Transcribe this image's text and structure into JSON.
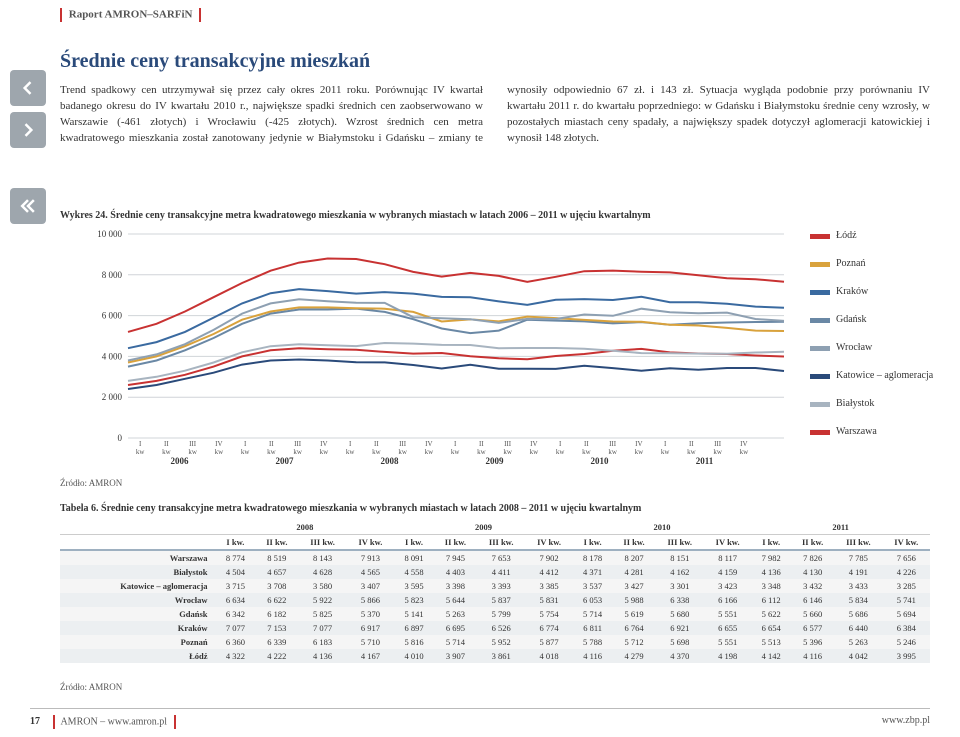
{
  "header": {
    "brand": "Raport AMRON–SARFiN"
  },
  "title": "Średnie ceny transakcyjne mieszkań",
  "paragraph": "Trend spadkowy cen utrzymywał się przez cały okres 2011 roku. Porównując IV kwartał badanego okresu do IV kwartału 2010 r., największe spadki średnich cen zaobserwowano w Warszawie (-461 złotych) i Wrocławiu (-425 złotych). Wzrost średnich cen metra kwadratowego mieszkania został zanotowany jedynie w Białymstoku i Gdańsku – zmiany te wynosiły odpowiednio 67 zł. i 143 zł. Sytuacja wygląda podobnie przy porównaniu IV kwartału 2011 r. do kwartału poprzedniego: w Gdańsku i Białymstoku średnie ceny wzrosły, w pozostałych miastach ceny spadały, a największy spadek dotyczył aglomeracji katowickiej i wynosił 148 złotych.",
  "chart": {
    "caption": "Wykres 24. Średnie ceny transakcyjne metra kwadratowego mieszkania w wybranych miastach w latach 2006 – 2011 w ujęciu kwartalnym",
    "type": "line",
    "ylim": [
      0,
      10000
    ],
    "yticks": [
      0,
      2000,
      4000,
      6000,
      8000,
      10000
    ],
    "ytick_labels": [
      "0",
      "2 000",
      "4 000",
      "6 000",
      "8 000",
      "10 000"
    ],
    "background_color": "#ffffff",
    "grid_color": "#d0d4d8",
    "line_width": 2,
    "x_quarters": [
      "I kw",
      "II kw",
      "III kw",
      "IV kw",
      "I kw",
      "II kw",
      "III kw",
      "IV kw",
      "I kw",
      "II kw",
      "III kw",
      "IV kw",
      "I kw",
      "II kw",
      "III kw",
      "IV kw",
      "I kw",
      "II kw",
      "III kw",
      "IV kw",
      "I kw",
      "II kw",
      "III kw",
      "IV kw"
    ],
    "x_years": [
      "2006",
      "2007",
      "2008",
      "2009",
      "2010",
      "2011"
    ],
    "legend_order": [
      "Łódź",
      "Poznań",
      "Kraków",
      "Gdańsk",
      "Wrocław",
      "Katowice – aglomeracja",
      "Białystok",
      "Warszawa"
    ],
    "colors": {
      "Łódź": "#c83232",
      "Poznań": "#d9a23c",
      "Kraków": "#3a6aa0",
      "Gdańsk": "#6a88a5",
      "Wrocław": "#8ea0b2",
      "Katowice – aglomeracja": "#2a4a7a",
      "Białystok": "#a8b4c0",
      "Warszawa": "#c83232"
    },
    "series": {
      "Warszawa": [
        5200,
        5600,
        6200,
        6900,
        7600,
        8200,
        8600,
        8800,
        8774,
        8519,
        8143,
        7913,
        8091,
        7945,
        7653,
        7902,
        8178,
        8207,
        8151,
        8117,
        7982,
        7826,
        7785,
        7656
      ],
      "Kraków": [
        4400,
        4700,
        5200,
        5900,
        6600,
        7100,
        7300,
        7200,
        7077,
        7153,
        7077,
        6917,
        6897,
        6695,
        6526,
        6774,
        6811,
        6764,
        6921,
        6655,
        6654,
        6577,
        6440,
        6384
      ],
      "Wrocław": [
        3800,
        4100,
        4600,
        5300,
        6100,
        6600,
        6800,
        6700,
        6634,
        6622,
        5922,
        5866,
        5823,
        5644,
        5837,
        5831,
        6053,
        5988,
        6338,
        6166,
        6112,
        6146,
        5834,
        5741
      ],
      "Poznań": [
        3700,
        4000,
        4500,
        5100,
        5800,
        6200,
        6400,
        6400,
        6360,
        6339,
        6183,
        5710,
        5816,
        5714,
        5952,
        5877,
        5788,
        5712,
        5698,
        5551,
        5513,
        5396,
        5263,
        5246
      ],
      "Gdańsk": [
        3500,
        3800,
        4300,
        4900,
        5600,
        6100,
        6300,
        6300,
        6342,
        6182,
        5825,
        5370,
        5141,
        5263,
        5799,
        5754,
        5714,
        5619,
        5680,
        5551,
        5622,
        5660,
        5686,
        5694
      ],
      "Białystok": [
        2800,
        3000,
        3300,
        3700,
        4200,
        4500,
        4600,
        4550,
        4504,
        4657,
        4628,
        4565,
        4558,
        4403,
        4411,
        4412,
        4371,
        4281,
        4162,
        4159,
        4136,
        4130,
        4191,
        4226
      ],
      "Łódź": [
        2600,
        2800,
        3100,
        3500,
        4000,
        4300,
        4400,
        4350,
        4322,
        4222,
        4136,
        4167,
        4010,
        3907,
        3861,
        4018,
        4116,
        4279,
        4370,
        4198,
        4142,
        4116,
        4042,
        3995
      ],
      "Katowice – aglomeracja": [
        2400,
        2600,
        2900,
        3200,
        3600,
        3800,
        3850,
        3800,
        3715,
        3708,
        3580,
        3407,
        3595,
        3398,
        3393,
        3385,
        3537,
        3427,
        3301,
        3423,
        3348,
        3432,
        3433,
        3285
      ]
    },
    "source": "Źródło: AMRON"
  },
  "table": {
    "caption": "Tabela 6. Średnie ceny transakcyjne metra kwadratowego mieszkania w wybranych miastach w latach 2008 – 2011 w ujęciu kwartalnym",
    "years": [
      "2008",
      "2009",
      "2010",
      "2011"
    ],
    "quarters": [
      "I kw.",
      "II kw.",
      "III kw.",
      "IV kw."
    ],
    "rows": [
      {
        "label": "Warszawa",
        "values": [
          "8 774",
          "8 519",
          "8 143",
          "7 913",
          "8 091",
          "7 945",
          "7 653",
          "7 902",
          "8 178",
          "8 207",
          "8 151",
          "8 117",
          "7 982",
          "7 826",
          "7 785",
          "7 656"
        ]
      },
      {
        "label": "Białystok",
        "values": [
          "4 504",
          "4 657",
          "4 628",
          "4 565",
          "4 558",
          "4 403",
          "4 411",
          "4 412",
          "4 371",
          "4 281",
          "4 162",
          "4 159",
          "4 136",
          "4 130",
          "4 191",
          "4 226"
        ]
      },
      {
        "label": "Katowice – aglomeracja",
        "values": [
          "3 715",
          "3 708",
          "3 580",
          "3 407",
          "3 595",
          "3 398",
          "3 393",
          "3 385",
          "3 537",
          "3 427",
          "3 301",
          "3 423",
          "3 348",
          "3 432",
          "3 433",
          "3 285"
        ]
      },
      {
        "label": "Wrocław",
        "values": [
          "6 634",
          "6 622",
          "5 922",
          "5 866",
          "5 823",
          "5 644",
          "5 837",
          "5 831",
          "6 053",
          "5 988",
          "6 338",
          "6 166",
          "6 112",
          "6 146",
          "5 834",
          "5 741"
        ]
      },
      {
        "label": "Gdańsk",
        "values": [
          "6 342",
          "6 182",
          "5 825",
          "5 370",
          "5 141",
          "5 263",
          "5 799",
          "5 754",
          "5 714",
          "5 619",
          "5 680",
          "5 551",
          "5 622",
          "5 660",
          "5 686",
          "5 694"
        ]
      },
      {
        "label": "Kraków",
        "values": [
          "7 077",
          "7 153",
          "7 077",
          "6 917",
          "6 897",
          "6 695",
          "6 526",
          "6 774",
          "6 811",
          "6 764",
          "6 921",
          "6 655",
          "6 654",
          "6 577",
          "6 440",
          "6 384"
        ]
      },
      {
        "label": "Poznań",
        "values": [
          "6 360",
          "6 339",
          "6 183",
          "5 710",
          "5 816",
          "5 714",
          "5 952",
          "5 877",
          "5 788",
          "5 712",
          "5 698",
          "5 551",
          "5 513",
          "5 396",
          "5 263",
          "5 246"
        ]
      },
      {
        "label": "Łódź",
        "values": [
          "4 322",
          "4 222",
          "4 136",
          "4 167",
          "4 010",
          "3 907",
          "3 861",
          "4 018",
          "4 116",
          "4 279",
          "4 370",
          "4 198",
          "4 142",
          "4 116",
          "4 042",
          "3 995"
        ]
      }
    ],
    "source": "Źródło: AMRON"
  },
  "footer": {
    "page_number": "17",
    "left_text": "AMRON – www.amron.pl",
    "right_text": "www.zbp.pl"
  }
}
